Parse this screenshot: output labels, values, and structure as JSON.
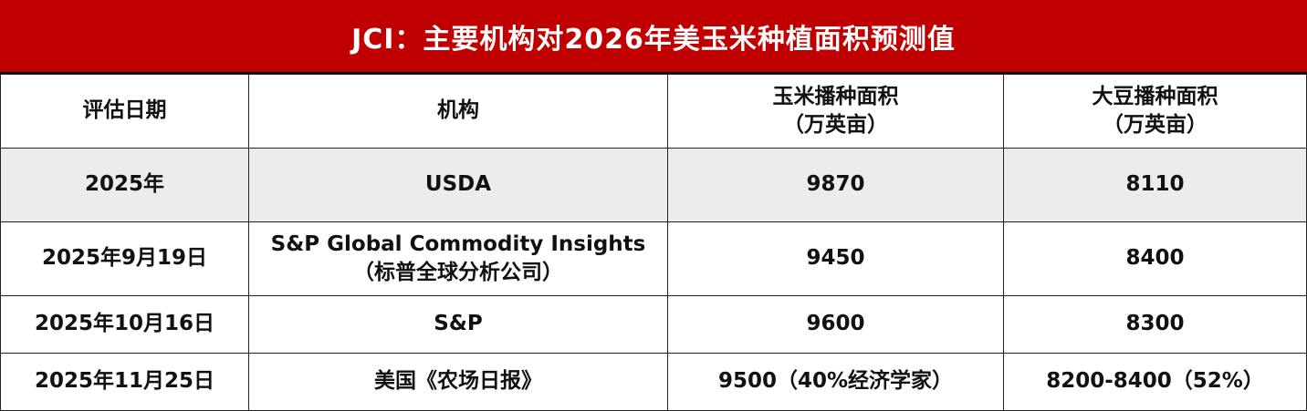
{
  "title": "JCI：主要机构对2026年美玉米种植面积预测值",
  "table": {
    "headers": {
      "date": "评估日期",
      "org": "机构",
      "corn_line1": "玉米播种面积",
      "corn_line2": "（万英亩）",
      "soy_line1": "大豆播种面积",
      "soy_line2": "（万英亩）"
    },
    "rows": [
      {
        "date": "2025年",
        "org_line1": "USDA",
        "org_line2": "",
        "corn": "9870",
        "soy": "8110"
      },
      {
        "date": "2025年9月19日",
        "org_line1": "S&P Global Commodity Insights",
        "org_line2": "（标普全球分析公司）",
        "corn": "9450",
        "soy": "8400"
      },
      {
        "date": "2025年10月16日",
        "org_line1": "S&P",
        "org_line2": "",
        "corn": "9600",
        "soy": "8300"
      },
      {
        "date": "2025年11月25日",
        "org_line1": "美国《农场日报》",
        "org_line2": "",
        "corn": "9500（40%经济学家）",
        "soy": "8200-8400（52%）"
      }
    ]
  },
  "colors": {
    "title_background": "#c00000",
    "title_text": "#ffffff",
    "highlight_row": "#ececec"
  }
}
